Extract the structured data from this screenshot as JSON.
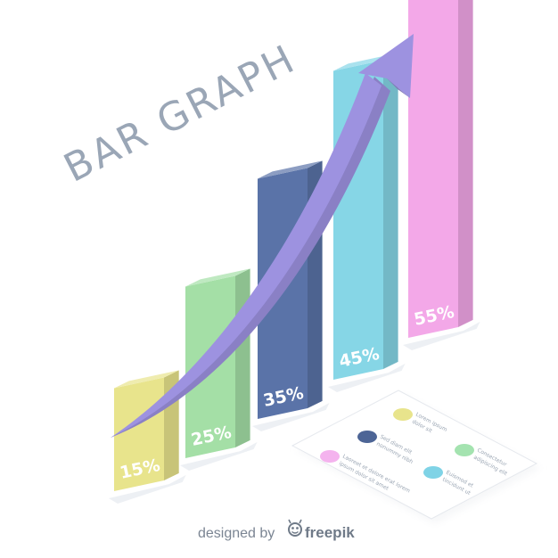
{
  "title": {
    "main": "BAR GRAPH"
  },
  "chart_data": {
    "type": "bar",
    "title": "BAR GRAPH",
    "categories": [
      "",
      "",
      "",
      "",
      ""
    ],
    "values": [
      15,
      25,
      35,
      45,
      55
    ],
    "value_labels": [
      "15%",
      "25%",
      "35%",
      "45%",
      "55%"
    ],
    "unit": "%",
    "ylim": [
      0,
      55
    ],
    "grid": false,
    "style": "isometric 3D bars with rising arrow",
    "colors": [
      "#e8e48c",
      "#a4dfa6",
      "#5a73a8",
      "#86d6e6",
      "#f3a8e8"
    ]
  },
  "arrow": {
    "color": "#9d92e0"
  },
  "legend": {
    "items": [
      {
        "color": "#e8e48c",
        "text_1": "Lorem ipsum",
        "text_2": "dolor sit"
      },
      {
        "color": "#4d6596",
        "text_1": "Sed diam elit",
        "text_2": "nonummy nibh"
      },
      {
        "color": "#a4e3b0",
        "text_1": "Consectetur",
        "text_2": "adipiscing elit"
      },
      {
        "color": "#f4b3ee",
        "text_1": "Laoreet et dolore erat lorem",
        "text_2": "ipsum dolor sit amet"
      },
      {
        "color": "#7fd3e6",
        "text_1": "Euismod et",
        "text_2": "tincidunt ut"
      }
    ]
  },
  "credit": {
    "designed_by": "designed by",
    "brand": "freepik"
  }
}
